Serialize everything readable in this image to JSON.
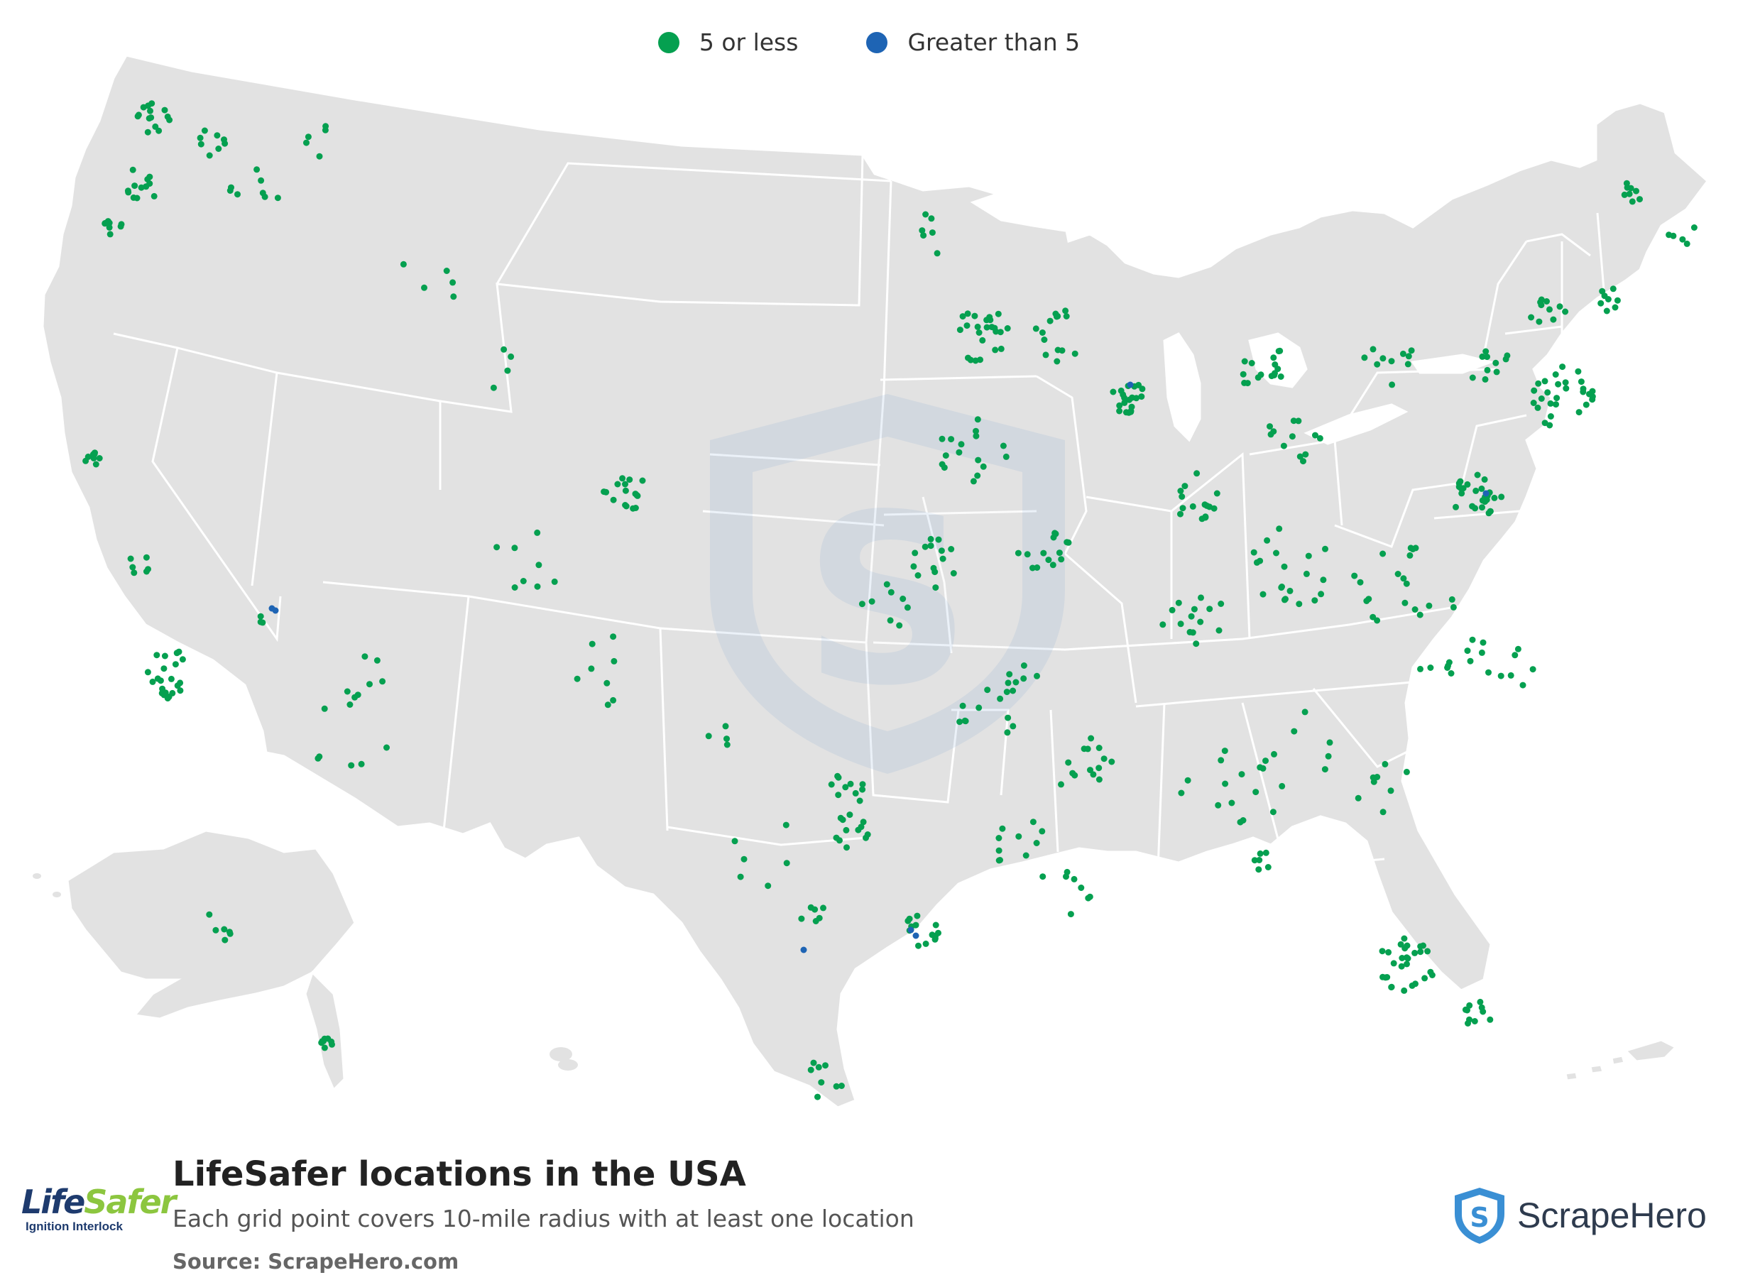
{
  "legend": [
    {
      "label": "5 or less",
      "color": "#05a050"
    },
    {
      "label": "Greater than 5",
      "color": "#1e64b4"
    }
  ],
  "title": "LifeSafer locations in the USA",
  "subtitle": "Each grid point covers 10-mile radius with at least one location",
  "source": "Source: ScrapeHero.com",
  "brand": {
    "name": "LifeSafer",
    "tagline": "Ignition Interlock",
    "colors": {
      "primary": "#1e3b6e",
      "accent": "#8cc63f"
    }
  },
  "publisher": {
    "name": "ScrapeHero",
    "icon": "shield-s-icon",
    "color": "#3a8fd4"
  },
  "map": {
    "land_color": "#e2e2e2",
    "border_color": "#ffffff"
  }
}
